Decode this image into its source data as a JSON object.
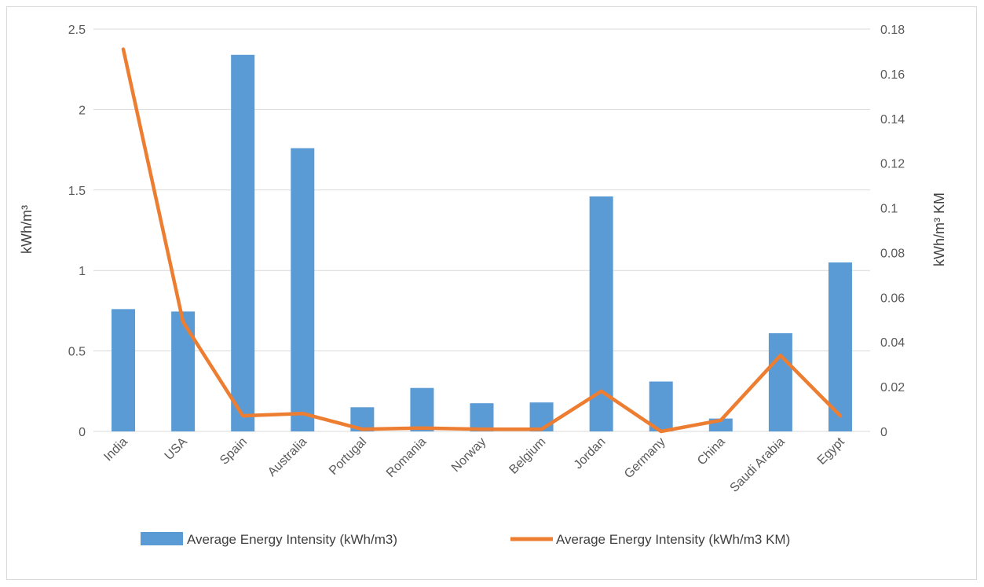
{
  "chart_data": {
    "type": "bar",
    "categories": [
      "India",
      "USA",
      "Spain",
      "Australia",
      "Portugal",
      "Romania",
      "Norway",
      "Belgium",
      "Jordan",
      "Germany",
      "China",
      "Saudi Arabia",
      "Egypt"
    ],
    "series": [
      {
        "name": "Average Energy Intensity (kWh/m3)",
        "type": "bar",
        "axis": "left",
        "color": "#5b9bd5",
        "values": [
          0.76,
          0.745,
          2.34,
          1.76,
          0.15,
          0.27,
          0.175,
          0.18,
          1.46,
          0.31,
          0.08,
          0.61,
          1.05
        ]
      },
      {
        "name": "Average Energy Intensity (kWh/m3 KM)",
        "type": "line",
        "axis": "right",
        "color": "#ed7d31",
        "values": [
          0.171,
          0.049,
          0.007,
          0.008,
          0.001,
          0.0015,
          0.001,
          0.001,
          0.018,
          0.0,
          0.005,
          0.034,
          0.007
        ]
      }
    ],
    "ylabel": "kWh/m³",
    "y2label": "kWh/m³ KM",
    "ylim": [
      0,
      2.5
    ],
    "y2lim": [
      0,
      0.18
    ],
    "yticks": [
      "0",
      "0.5",
      "1",
      "1.5",
      "2",
      "2.5"
    ],
    "y2ticks": [
      "0",
      "0.02",
      "0.04",
      "0.06",
      "0.08",
      "0.1",
      "0.12",
      "0.14",
      "0.16",
      "0.18"
    ],
    "grid": true,
    "legend": "bottom"
  }
}
